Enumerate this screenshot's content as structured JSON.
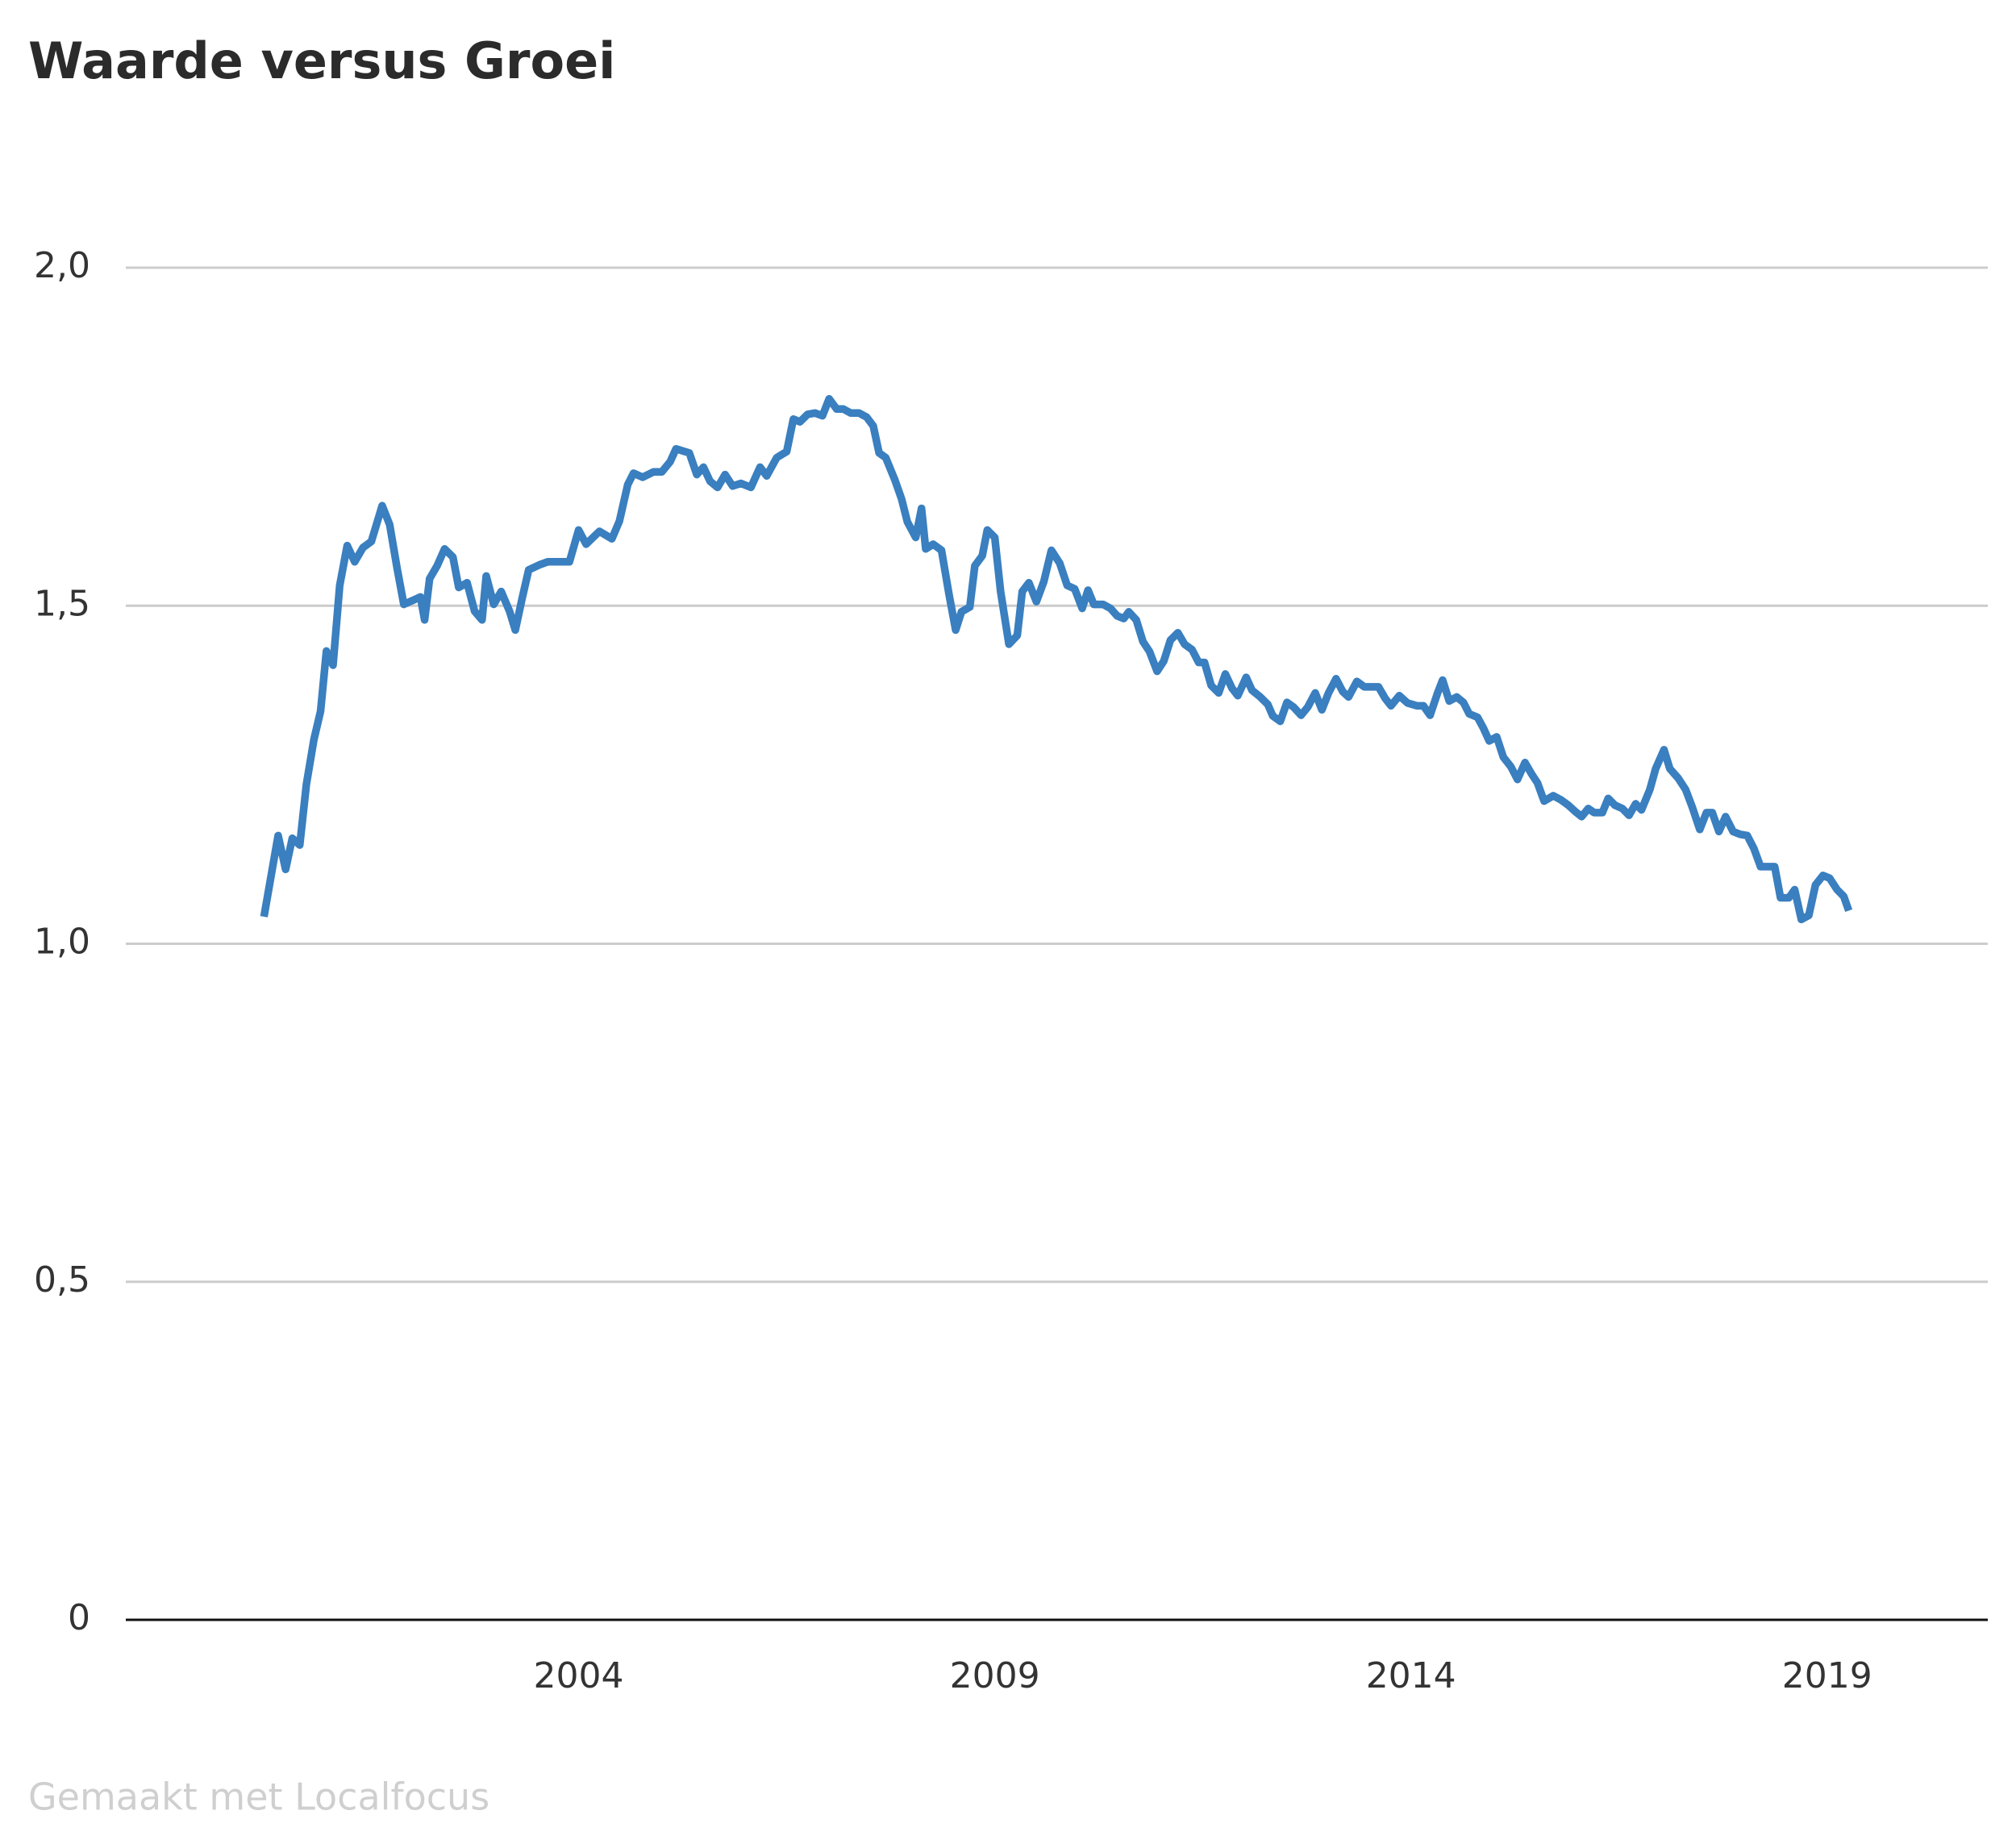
{
  "chart_data": {
    "type": "line",
    "title": "Waarde versus Groei",
    "footer": "Gemaakt met Localfocus",
    "xlim": [
      1998.56,
      2020.93
    ],
    "xticks": [
      2004,
      2009,
      2014,
      2019
    ],
    "ylim": [
      0,
      2.0
    ],
    "yticks": [
      {
        "value": 2.0,
        "label": "2,0"
      },
      {
        "value": 1.5,
        "label": "1,5"
      },
      {
        "value": 1.0,
        "label": "1,0"
      },
      {
        "value": 0.5,
        "label": "0,5"
      },
      0
    ],
    "grid": true,
    "x": [
      2000.22,
      2000.39,
      2000.48,
      2000.56,
      2000.65,
      2000.73,
      2000.82,
      2000.9,
      2000.97,
      2001.05,
      2001.13,
      2001.22,
      2001.31,
      2001.41,
      2001.51,
      2001.64,
      2001.73,
      2001.82,
      2001.9,
      2002.01,
      2002.1,
      2002.15,
      2002.21,
      2002.3,
      2002.39,
      2002.49,
      2002.56,
      2002.66,
      2002.75,
      2002.84,
      2002.89,
      2002.98,
      2003.07,
      2003.17,
      2003.24,
      2003.32,
      2003.4,
      2003.54,
      2003.63,
      2003.89,
      2004.0,
      2004.09,
      2004.25,
      2004.4,
      2004.49,
      2004.59,
      2004.66,
      2004.77,
      2004.9,
      2005.0,
      2005.1,
      2005.17,
      2005.33,
      2005.42,
      2005.5,
      2005.58,
      2005.67,
      2005.76,
      2005.85,
      2005.95,
      2006.07,
      2006.18,
      2006.26,
      2006.38,
      2006.5,
      2006.58,
      2006.66,
      2006.75,
      2006.84,
      2006.93,
      2007.01,
      2007.1,
      2007.18,
      2007.27,
      2007.37,
      2007.46,
      2007.54,
      2007.61,
      2007.69,
      2007.8,
      2007.88,
      2007.95,
      2008.05,
      2008.12,
      2008.17,
      2008.26,
      2008.36,
      2008.45,
      2008.53,
      2008.6,
      2008.7,
      2008.76,
      2008.85,
      2008.91,
      2009.0,
      2009.07,
      2009.17,
      2009.27,
      2009.33,
      2009.41,
      2009.5,
      2009.59,
      2009.68,
      2009.78,
      2009.87,
      2009.96,
      2010.05,
      2010.12,
      2010.19,
      2010.3,
      2010.39,
      2010.47,
      2010.55,
      2010.61,
      2010.7,
      2010.78,
      2010.86,
      2010.95,
      2011.03,
      2011.11,
      2011.2,
      2011.28,
      2011.37,
      2011.45,
      2011.52,
      2011.6,
      2011.69,
      2011.77,
      2011.85,
      2011.92,
      2012.02,
      2012.09,
      2012.19,
      2012.28,
      2012.34,
      2012.43,
      2012.51,
      2012.59,
      2012.68,
      2012.76,
      2012.85,
      2012.93,
      2013.01,
      2013.1,
      2013.18,
      2013.25,
      2013.35,
      2013.44,
      2013.61,
      2013.69,
      2013.76,
      2013.86,
      2013.96,
      2014.07,
      2014.15,
      2014.23,
      2014.32,
      2014.38,
      2014.46,
      2014.55,
      2014.63,
      2014.7,
      2014.8,
      2014.87,
      2014.94,
      2015.03,
      2015.11,
      2015.2,
      2015.28,
      2015.37,
      2015.45,
      2015.52,
      2015.6,
      2015.71,
      2015.8,
      2015.89,
      2015.97,
      2016.05,
      2016.13,
      2016.2,
      2016.3,
      2016.37,
      2016.45,
      2016.54,
      2016.62,
      2016.7,
      2016.77,
      2016.87,
      2016.94,
      2017.04,
      2017.11,
      2017.21,
      2017.3,
      2017.38,
      2017.47,
      2017.55,
      2017.62,
      2017.7,
      2017.78,
      2017.87,
      2017.95,
      2018.04,
      2018.12,
      2018.2,
      2018.37,
      2018.44,
      2018.54,
      2018.61,
      2018.69,
      2018.78,
      2018.86,
      2018.95,
      2019.03,
      2019.12,
      2019.2,
      2019.26
    ],
    "series": [
      {
        "color": "#3a7fbf",
        "values": [
          1.04,
          1.16,
          1.11,
          1.156,
          1.146,
          1.236,
          1.302,
          1.344,
          1.433,
          1.412,
          1.53,
          1.589,
          1.565,
          1.586,
          1.595,
          1.648,
          1.62,
          1.555,
          1.502,
          1.508,
          1.513,
          1.479,
          1.54,
          1.559,
          1.584,
          1.572,
          1.527,
          1.534,
          1.492,
          1.479,
          1.544,
          1.502,
          1.521,
          1.492,
          1.464,
          1.51,
          1.553,
          1.561,
          1.565,
          1.565,
          1.612,
          1.591,
          1.61,
          1.599,
          1.625,
          1.679,
          1.696,
          1.69,
          1.698,
          1.698,
          1.713,
          1.732,
          1.726,
          1.694,
          1.705,
          1.684,
          1.675,
          1.694,
          1.677,
          1.681,
          1.675,
          1.705,
          1.692,
          1.719,
          1.728,
          1.776,
          1.772,
          1.783,
          1.785,
          1.781,
          1.806,
          1.791,
          1.791,
          1.785,
          1.785,
          1.779,
          1.766,
          1.726,
          1.719,
          1.686,
          1.658,
          1.624,
          1.601,
          1.644,
          1.584,
          1.591,
          1.582,
          1.517,
          1.464,
          1.491,
          1.498,
          1.559,
          1.574,
          1.612,
          1.601,
          1.521,
          1.443,
          1.456,
          1.521,
          1.534,
          1.506,
          1.536,
          1.582,
          1.563,
          1.53,
          1.525,
          1.496,
          1.523,
          1.502,
          1.502,
          1.496,
          1.485,
          1.481,
          1.491,
          1.479,
          1.447,
          1.432,
          1.403,
          1.418,
          1.449,
          1.46,
          1.443,
          1.435,
          1.416,
          1.416,
          1.382,
          1.371,
          1.399,
          1.378,
          1.367,
          1.394,
          1.375,
          1.365,
          1.354,
          1.337,
          1.329,
          1.357,
          1.35,
          1.338,
          1.35,
          1.371,
          1.346,
          1.371,
          1.392,
          1.373,
          1.365,
          1.388,
          1.38,
          1.38,
          1.363,
          1.352,
          1.367,
          1.356,
          1.352,
          1.352,
          1.338,
          1.371,
          1.39,
          1.359,
          1.365,
          1.357,
          1.34,
          1.335,
          1.319,
          1.3,
          1.306,
          1.276,
          1.262,
          1.243,
          1.268,
          1.251,
          1.238,
          1.211,
          1.219,
          1.213,
          1.205,
          1.196,
          1.188,
          1.2,
          1.194,
          1.194,
          1.215,
          1.205,
          1.2,
          1.19,
          1.207,
          1.198,
          1.228,
          1.259,
          1.287,
          1.259,
          1.245,
          1.228,
          1.202,
          1.169,
          1.194,
          1.194,
          1.166,
          1.188,
          1.166,
          1.162,
          1.16,
          1.141,
          1.114,
          1.114,
          1.068,
          1.068,
          1.08,
          1.036,
          1.042,
          1.087,
          1.101,
          1.097,
          1.08,
          1.07,
          1.049
        ]
      }
    ]
  }
}
